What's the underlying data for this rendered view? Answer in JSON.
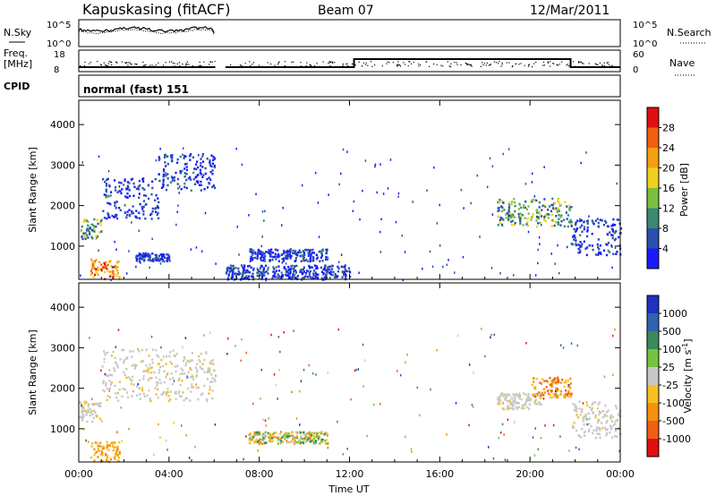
{
  "header": {
    "station": "Kapuskasing (fitACF)",
    "beam": "Beam 07",
    "date": "12/Mar/2011"
  },
  "noise_panel": {
    "left_label": "N.Sky",
    "left_ticks": [
      "10^5",
      "10^0"
    ],
    "right_ticks": [
      "10^5",
      "10^0"
    ],
    "right_label": "N.Search"
  },
  "freq_panel": {
    "left_label_1": "Freq.",
    "left_label_2": "[MHz]",
    "left_ticks": [
      "18",
      "8"
    ],
    "right_ticks": [
      "60",
      "0"
    ],
    "right_label": "Nave"
  },
  "cpid": {
    "label": "CPID",
    "value": "normal (fast) 151"
  },
  "chart_data": [
    {
      "type": "heatmap",
      "quantity": "power",
      "ylabel": "Slant Range [km]",
      "ylim": [
        180,
        4600
      ],
      "yticks": [
        "1000",
        "2000",
        "3000",
        "4000"
      ],
      "xlim": [
        0,
        24
      ],
      "colorbar": {
        "label": "Power [dB]",
        "ticks": [
          "4",
          "8",
          "12",
          "16",
          "20",
          "24",
          "28"
        ],
        "colors": [
          "#1a1aff",
          "#2a4fb0",
          "#3a8a70",
          "#7ac040",
          "#f0d020",
          "#f5a010",
          "#f06010",
          "#e01010"
        ]
      },
      "echo_regions": [
        {
          "t0": 0.0,
          "t1": 1.0,
          "r0": 1200,
          "r1": 1700,
          "level": "medium"
        },
        {
          "t0": 1.0,
          "t1": 3.5,
          "r0": 1700,
          "r1": 2700,
          "level": "low"
        },
        {
          "t0": 3.5,
          "t1": 6.0,
          "r0": 2400,
          "r1": 3300,
          "level": "low"
        },
        {
          "t0": 0.5,
          "t1": 1.8,
          "r0": 200,
          "r1": 700,
          "level": "high"
        },
        {
          "t0": 2.5,
          "t1": 4.0,
          "r0": 650,
          "r1": 850,
          "level": "low"
        },
        {
          "t0": 7.5,
          "t1": 11.0,
          "r0": 650,
          "r1": 950,
          "level": "low"
        },
        {
          "t0": 6.5,
          "t1": 12.0,
          "r0": 200,
          "r1": 550,
          "level": "low"
        },
        {
          "t0": 18.5,
          "t1": 21.8,
          "r0": 1500,
          "r1": 2200,
          "level": "medium"
        },
        {
          "t0": 21.8,
          "t1": 24.0,
          "r0": 800,
          "r1": 1700,
          "level": "low"
        }
      ]
    },
    {
      "type": "heatmap",
      "quantity": "velocity",
      "ylabel": "Slant Range [km]",
      "ylim": [
        180,
        4600
      ],
      "yticks": [
        "1000",
        "2000",
        "3000",
        "4000"
      ],
      "xlim": [
        0,
        24
      ],
      "xticks": [
        "00:00",
        "04:00",
        "08:00",
        "12:00",
        "16:00",
        "20:00",
        "00:00"
      ],
      "xlabel": "Time UT",
      "colorbar": {
        "label": "Velocity [m s^-1]",
        "ticks": [
          "1000",
          "500",
          "100",
          "25",
          "-25",
          "-100",
          "-500",
          "-1000"
        ],
        "colors": [
          "#2030c0",
          "#2f62b0",
          "#3a8a5a",
          "#74c440",
          "#c8c8c8",
          "#f5c020",
          "#f59010",
          "#f06010",
          "#e01010"
        ]
      },
      "echo_regions": [
        {
          "t0": 0.0,
          "t1": 1.0,
          "r0": 1200,
          "r1": 1700,
          "level": "ground"
        },
        {
          "t0": 1.0,
          "t1": 6.0,
          "r0": 1700,
          "r1": 3000,
          "level": "ground"
        },
        {
          "t0": 0.5,
          "t1": 1.8,
          "r0": 200,
          "r1": 700,
          "level": "slow-away"
        },
        {
          "t0": 7.5,
          "t1": 11.0,
          "r0": 650,
          "r1": 950,
          "level": "mixed"
        },
        {
          "t0": 18.5,
          "t1": 20.5,
          "r0": 1500,
          "r1": 1900,
          "level": "ground"
        },
        {
          "t0": 20.0,
          "t1": 21.8,
          "r0": 1800,
          "r1": 2300,
          "level": "away"
        },
        {
          "t0": 21.8,
          "t1": 24.0,
          "r0": 800,
          "r1": 1700,
          "level": "ground"
        }
      ]
    }
  ]
}
